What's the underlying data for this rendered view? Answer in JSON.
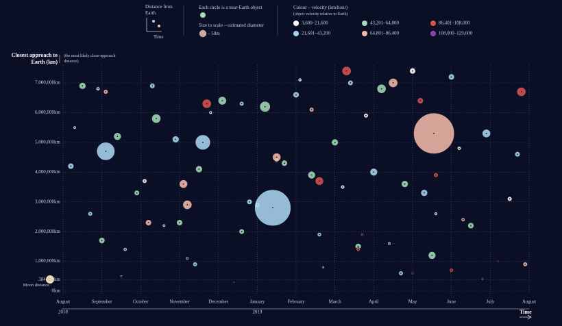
{
  "chart_data": {
    "type": "scatter",
    "axis_title": "Closest approach to Earth (km)",
    "axis_note": "(the most likely close-approach distance)",
    "key_distance": "Distance from Earth",
    "key_time": "Time",
    "key_circle": "Each circle is a near-Earth object",
    "size_key": {
      "label": "Size to scale – estimated diameter",
      "value": 50,
      "value_label": "– 50m"
    },
    "colour_key": "Colour – velocity (km/hour)",
    "colour_note": "(object velocity relative to Earth)",
    "moon_label": "Moon distance",
    "time_label": "Time",
    "years": [
      {
        "value": 0,
        "label": "2018"
      },
      {
        "value": 5,
        "label": "2019"
      }
    ],
    "xlim": [
      0,
      12
    ],
    "xticks": [
      {
        "value": 0,
        "label": "August"
      },
      {
        "value": 1,
        "label": "September"
      },
      {
        "value": 2,
        "label": "October"
      },
      {
        "value": 3,
        "label": "November"
      },
      {
        "value": 4,
        "label": "December"
      },
      {
        "value": 5,
        "label": "January"
      },
      {
        "value": 6,
        "label": "February"
      },
      {
        "value": 7,
        "label": "March"
      },
      {
        "value": 8,
        "label": "April"
      },
      {
        "value": 9,
        "label": "May"
      },
      {
        "value": 10,
        "label": "June"
      },
      {
        "value": 11,
        "label": "July"
      },
      {
        "value": 12,
        "label": "August"
      }
    ],
    "ylim": [
      0,
      7600000
    ],
    "yticks": [
      {
        "value": 0,
        "label": "0km"
      },
      {
        "value": 384400,
        "label": "384,400km"
      },
      {
        "value": 1000000,
        "label": "1,000,000km"
      },
      {
        "value": 2000000,
        "label": "2,000,000km"
      },
      {
        "value": 3000000,
        "label": "3,000,000km"
      },
      {
        "value": 4000000,
        "label": "4,000,000km"
      },
      {
        "value": 5000000,
        "label": "5,000,000km"
      },
      {
        "value": 6000000,
        "label": "6,000,000km"
      },
      {
        "value": 7000000,
        "label": "7,000,000km"
      }
    ],
    "grid": true,
    "series": [
      {
        "name": "3,600–21,600",
        "color": "#ffffff",
        "x": [
          0.3,
          0.9,
          1.5,
          2.1,
          2.6,
          3.2,
          3.8,
          4.4,
          5.0,
          5.5,
          6.1,
          6.7,
          7.2,
          7.8,
          8.4,
          9.0,
          9.6,
          10.2,
          10.8,
          11.5
        ],
        "values": [
          5500000,
          6800000,
          500000,
          3700000,
          2200000,
          1100000,
          6000000,
          300000,
          2900000,
          4400000,
          7100000,
          800000,
          3500000,
          5900000,
          1600000,
          7400000,
          2600000,
          4800000,
          400000,
          3100000
        ],
        "sizes": [
          20,
          25,
          15,
          30,
          20,
          18,
          22,
          12,
          35,
          28,
          24,
          16,
          26,
          30,
          20,
          40,
          22,
          25,
          14,
          30
        ]
      },
      {
        "name": "21,601–43,200",
        "color": "#a8d4f0",
        "x": [
          0.2,
          0.7,
          1.1,
          1.6,
          2.3,
          2.9,
          3.4,
          3.6,
          4.6,
          4.8,
          5.4,
          6.0,
          6.6,
          7.4,
          8.0,
          8.7,
          9.3,
          10.0,
          10.9,
          11.7
        ],
        "values": [
          4200000,
          2600000,
          4700000,
          1400000,
          6900000,
          5100000,
          900000,
          5000000,
          6300000,
          3000000,
          2800000,
          6600000,
          1900000,
          7000000,
          4000000,
          600000,
          3300000,
          7200000,
          5300000,
          4600000
        ],
        "sizes": [
          40,
          30,
          120,
          25,
          35,
          45,
          30,
          100,
          30,
          35,
          240,
          40,
          28,
          35,
          50,
          30,
          45,
          40,
          55,
          35
        ]
      },
      {
        "name": "43,201–64,800",
        "color": "#a3d9b5",
        "x": [
          0.5,
          1.0,
          1.4,
          1.9,
          2.4,
          3.0,
          3.5,
          4.1,
          4.6,
          5.2,
          5.7,
          6.4,
          7.0,
          7.6,
          8.2,
          8.8,
          9.5,
          10.5
        ],
        "values": [
          6900000,
          1700000,
          5200000,
          3300000,
          5800000,
          2300000,
          4100000,
          6400000,
          2000000,
          6200000,
          4300000,
          3900000,
          5000000,
          1500000,
          6800000,
          3600000,
          1200000,
          2200000
        ],
        "sizes": [
          45,
          40,
          50,
          35,
          60,
          40,
          45,
          55,
          35,
          70,
          40,
          50,
          45,
          40,
          60,
          45,
          50,
          40
        ]
      },
      {
        "name": "64,801–86,400",
        "color": "#f2b8a8",
        "x": [
          1.1,
          2.2,
          3.1,
          3.2,
          5.5,
          6.4,
          8.5,
          9.55,
          10.3,
          11.9
        ],
        "values": [
          6700000,
          2300000,
          3600000,
          2900000,
          4500000,
          6100000,
          7000000,
          5300000,
          2400000,
          900000
        ],
        "sizes": [
          30,
          40,
          55,
          60,
          55,
          30,
          60,
          270,
          25,
          30
        ]
      },
      {
        "name": "86,401–108,000",
        "color": "#d9534f",
        "x": [
          3.7,
          6.6,
          7.3,
          9.2,
          9.6,
          10.0,
          11.8,
          7.6
        ],
        "values": [
          6300000,
          3700000,
          7400000,
          6400000,
          3900000,
          700000,
          6700000,
          1400000
        ],
        "sizes": [
          60,
          55,
          60,
          40,
          30,
          25,
          60,
          25
        ]
      },
      {
        "name": "108,000–129,600",
        "color": "#8e44ad",
        "x": [
          7.7,
          9.0,
          11.2
        ],
        "values": [
          1900000,
          600000,
          1000000
        ],
        "sizes": [
          20,
          18,
          15
        ]
      }
    ]
  }
}
